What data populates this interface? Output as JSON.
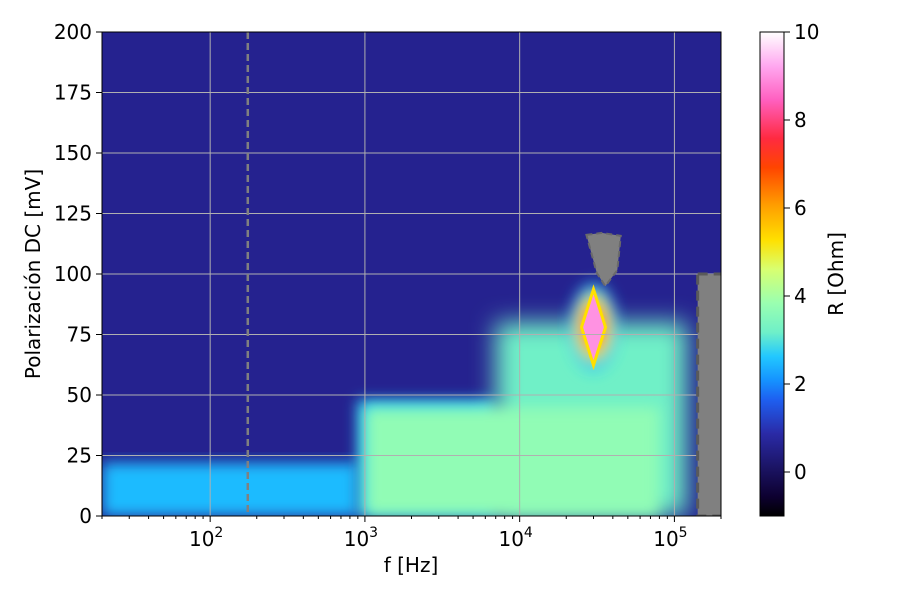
{
  "chart_data": {
    "type": "heatmap",
    "title": "",
    "xlabel": "f [Hz]",
    "ylabel": "Polarización DC [mV]",
    "colorbar_label": "R [Ohm]",
    "x_scale": "log",
    "xlim": [
      20,
      200000
    ],
    "ylim": [
      0,
      200
    ],
    "clim": [
      -1,
      10
    ],
    "grid": true,
    "colormap": "gist_ncar-like (black, navy, blue, cyan, mint, yellow, orange, red, pink, white)",
    "x_ticks": [
      {
        "base": "10",
        "exp": "2",
        "value": 100
      },
      {
        "base": "10",
        "exp": "3",
        "value": 1000
      },
      {
        "base": "10",
        "exp": "4",
        "value": 10000
      },
      {
        "base": "10",
        "exp": "5",
        "value": 100000
      }
    ],
    "y_ticks": [
      "0",
      "25",
      "50",
      "75",
      "100",
      "125",
      "150",
      "175",
      "200"
    ],
    "colorbar_ticks": [
      "0",
      "2",
      "4",
      "6",
      "8",
      "10"
    ],
    "reference_line": {
      "f_hz": 175,
      "style": "dashed",
      "color": "#808080"
    },
    "regions": [
      {
        "name": "background",
        "f_range": [
          20,
          200000
        ],
        "v_range": [
          0,
          200
        ],
        "R_ohm": 0.6
      },
      {
        "name": "low-frequency band",
        "f_range": [
          20,
          900
        ],
        "v_range": [
          0,
          22
        ],
        "R_ohm": 2.5
      },
      {
        "name": "mid band",
        "f_range": [
          900,
          7000
        ],
        "v_range": [
          0,
          48
        ],
        "R_ohm": 2.7
      },
      {
        "name": "high-frequency plateau",
        "f_range": [
          7000,
          120000
        ],
        "v_range": [
          0,
          80
        ],
        "R_ohm": 3.2
      },
      {
        "name": "plateau core",
        "f_range": [
          1000,
          80000
        ],
        "v_range": [
          0,
          45
        ],
        "R_ohm": 3.7
      }
    ],
    "peak": {
      "f_hz": 30000,
      "v_mv": 78,
      "R_ohm": 9.0
    },
    "masked_regions": [
      {
        "f_range": [
          27000,
          45000
        ],
        "v_range": [
          95,
          117
        ],
        "color": "#808080"
      },
      {
        "f_range": [
          150000,
          200000
        ],
        "v_range": [
          0,
          100
        ],
        "color": "#808080"
      }
    ]
  }
}
